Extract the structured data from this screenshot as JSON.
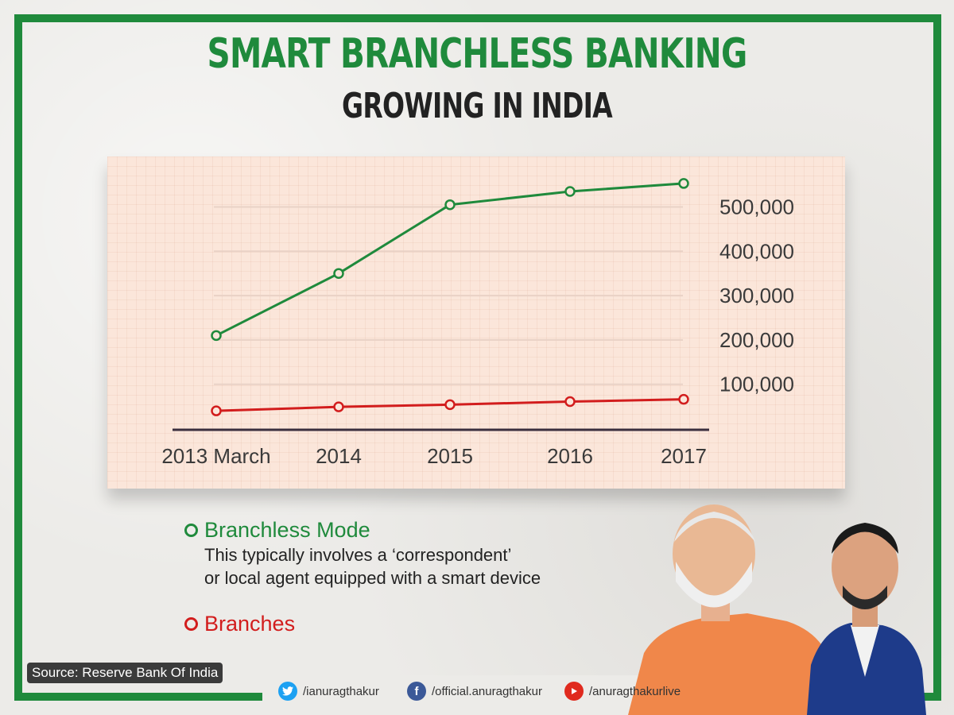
{
  "header": {
    "title": "SMART BRANCHLESS BANKING",
    "subtitle": "GROWING IN INDIA"
  },
  "colors": {
    "frame": "#1f8a3c",
    "branchless": "#1f8a3c",
    "branches": "#d21d1d",
    "paper": "#fbe6da"
  },
  "chart_data": {
    "type": "line",
    "categories": [
      "2013 March",
      "2014",
      "2015",
      "2016",
      "2017"
    ],
    "series": [
      {
        "name": "Branchless Mode",
        "values": [
          210000,
          350000,
          505000,
          535000,
          553000
        ]
      },
      {
        "name": "Branches",
        "values": [
          40000,
          49000,
          54000,
          61000,
          66000
        ]
      }
    ],
    "y_ticks": [
      "500,000",
      "400,000",
      "300,000",
      "200,000",
      "100,000"
    ],
    "y_tick_values": [
      500000,
      400000,
      300000,
      200000,
      100000
    ],
    "ylim": [
      0,
      600000
    ],
    "grid": true,
    "y_axis_side": "right"
  },
  "legend": {
    "branchless_label": "Branchless Mode",
    "branchless_desc_line1": "This typically involves a ‘correspondent’",
    "branchless_desc_line2": "or local agent equipped with a smart device",
    "branches_label": "Branches"
  },
  "source": "Source: Reserve Bank Of India",
  "social": {
    "twitter": "/ianuragthakur",
    "facebook": "/official.anuragthakur",
    "youtube": "/anuragthakurlive",
    "twitter_icon": "twitter-icon",
    "facebook_icon": "facebook-icon",
    "youtube_icon": "youtube-icon"
  }
}
